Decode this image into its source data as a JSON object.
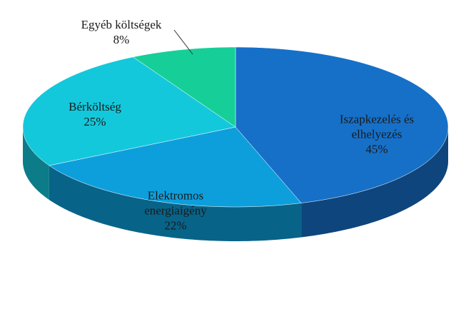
{
  "chart_data": {
    "type": "pie",
    "categories": [
      "Iszapkezelés és elhelyezés",
      "Elektromos energiaigény",
      "Bérköltség",
      "Egyéb költségek"
    ],
    "values": [
      45,
      22,
      25,
      8
    ],
    "value_labels": [
      "45%",
      "22%",
      "25%",
      "8%"
    ],
    "colors": [
      "#1670c8",
      "#0d9fdc",
      "#14c8dc",
      "#16cf98"
    ]
  }
}
